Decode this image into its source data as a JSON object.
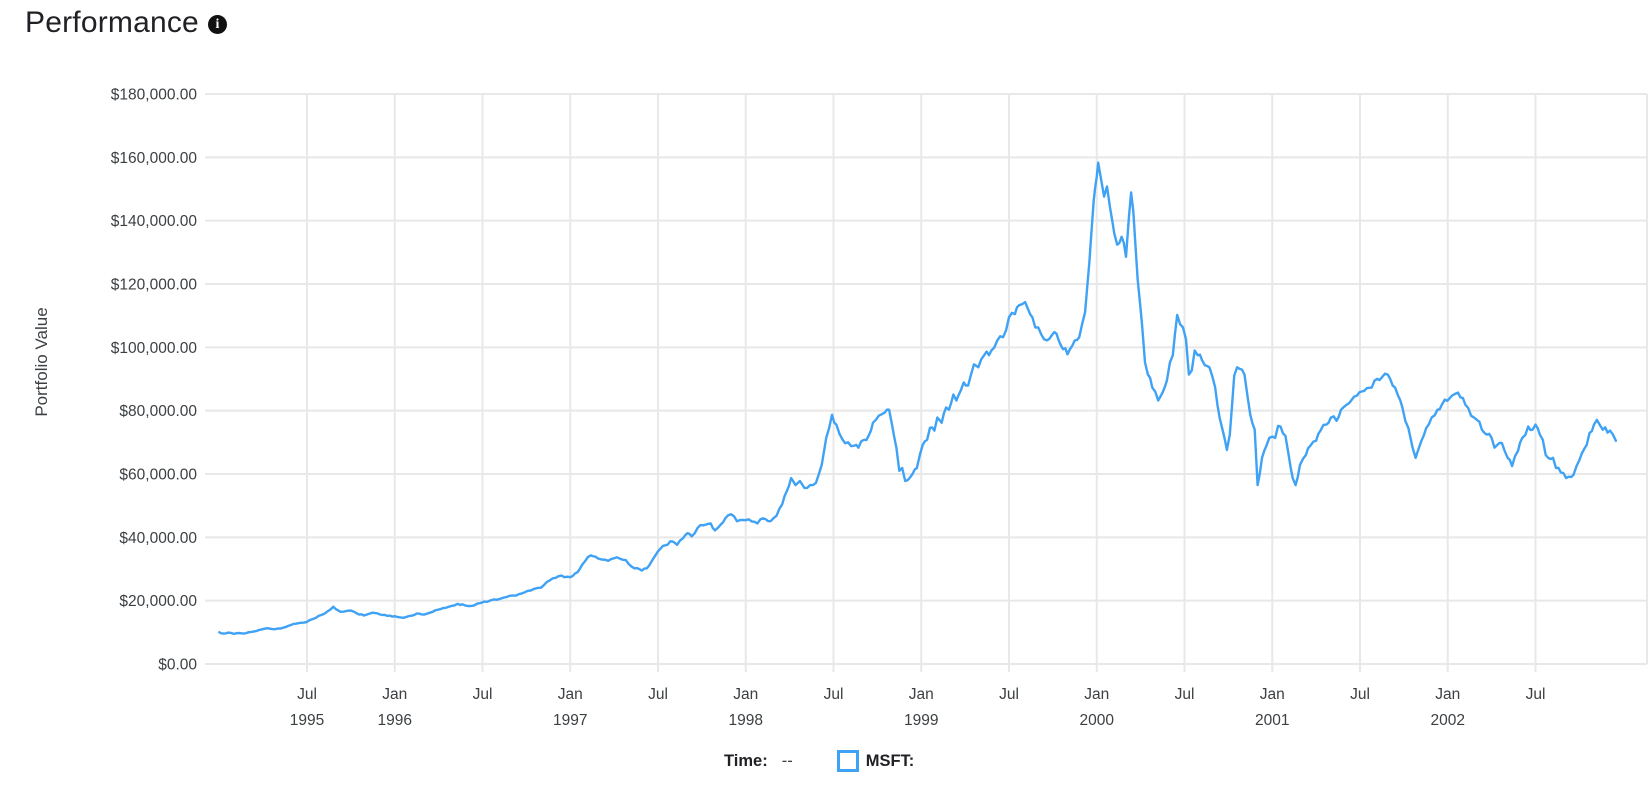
{
  "header": {
    "title": "Performance",
    "info_glyph": "i"
  },
  "legend": {
    "time_label": "Time:",
    "time_value": "--",
    "series_label": "MSFT:",
    "swatch_color": "#3FA2F5"
  },
  "chart_data": {
    "type": "line",
    "title": "Performance",
    "ylabel": "Portfolio Value",
    "xlabel": "",
    "grid": true,
    "legend_position": "bottom",
    "line_color": "#3FA2F5",
    "grid_color": "#E8E8E8",
    "tick_text_color": "#3c4043",
    "ylim": [
      0,
      180000
    ],
    "x_unit": "months_since_1995-01",
    "xlim_months": [
      0,
      96
    ],
    "y_ticks": [
      {
        "value": 180000,
        "label": "$180,000.00"
      },
      {
        "value": 160000,
        "label": "$160,000.00"
      },
      {
        "value": 140000,
        "label": "$140,000.00"
      },
      {
        "value": 120000,
        "label": "$120,000.00"
      },
      {
        "value": 100000,
        "label": "$100,000.00"
      },
      {
        "value": 80000,
        "label": "$80,000.00"
      },
      {
        "value": 60000,
        "label": "$60,000.00"
      },
      {
        "value": 40000,
        "label": "$40,000.00"
      },
      {
        "value": 20000,
        "label": "$20,000.00"
      },
      {
        "value": 0,
        "label": "$0.00"
      }
    ],
    "x_ticks": [
      {
        "m": 6,
        "label": "Jul",
        "year": "1995"
      },
      {
        "m": 12,
        "label": "Jan",
        "year": "1996"
      },
      {
        "m": 18,
        "label": "Jul",
        "year": ""
      },
      {
        "m": 24,
        "label": "Jan",
        "year": "1997"
      },
      {
        "m": 30,
        "label": "Jul",
        "year": ""
      },
      {
        "m": 36,
        "label": "Jan",
        "year": "1998"
      },
      {
        "m": 42,
        "label": "Jul",
        "year": ""
      },
      {
        "m": 48,
        "label": "Jan",
        "year": "1999"
      },
      {
        "m": 54,
        "label": "Jul",
        "year": ""
      },
      {
        "m": 60,
        "label": "Jan",
        "year": "2000"
      },
      {
        "m": 66,
        "label": "Jul",
        "year": ""
      },
      {
        "m": 72,
        "label": "Jan",
        "year": "2001"
      },
      {
        "m": 78,
        "label": "Jul",
        "year": ""
      },
      {
        "m": 84,
        "label": "Jan",
        "year": "2002"
      },
      {
        "m": 90,
        "label": "Jul",
        "year": ""
      }
    ],
    "series": [
      {
        "name": "MSFT",
        "points": [
          [
            0,
            10000
          ],
          [
            0.3,
            9600
          ],
          [
            0.6,
            9900
          ],
          [
            1,
            9500
          ],
          [
            1.3,
            9800
          ],
          [
            1.7,
            9600
          ],
          [
            2,
            10000
          ],
          [
            2.4,
            10300
          ],
          [
            2.7,
            10700
          ],
          [
            3.3,
            11300
          ],
          [
            3.8,
            11000
          ],
          [
            4.2,
            11200
          ],
          [
            4.7,
            12000
          ],
          [
            5.1,
            12700
          ],
          [
            5.6,
            13000
          ],
          [
            6,
            13300
          ],
          [
            6.4,
            14200
          ],
          [
            7,
            15500
          ],
          [
            7.4,
            16600
          ],
          [
            7.8,
            18100
          ],
          [
            8.1,
            17000
          ],
          [
            8.3,
            16500
          ],
          [
            9,
            16900
          ],
          [
            9.4,
            16000
          ],
          [
            9.9,
            15300
          ],
          [
            10.5,
            16200
          ],
          [
            11,
            15600
          ],
          [
            11.5,
            15200
          ],
          [
            12,
            15100
          ],
          [
            12.6,
            14600
          ],
          [
            13,
            15200
          ],
          [
            13.5,
            15900
          ],
          [
            14,
            15600
          ],
          [
            14.6,
            16500
          ],
          [
            15.1,
            17300
          ],
          [
            15.7,
            18100
          ],
          [
            16.3,
            19000
          ],
          [
            16.8,
            18500
          ],
          [
            17.2,
            18300
          ],
          [
            18.1,
            19700
          ],
          [
            19,
            20300
          ],
          [
            20.1,
            21600
          ],
          [
            20.7,
            22300
          ],
          [
            21.3,
            23200
          ],
          [
            22,
            24100
          ],
          [
            22.6,
            26400
          ],
          [
            23.4,
            27900
          ],
          [
            24,
            27400
          ],
          [
            24.5,
            29000
          ],
          [
            25,
            32400
          ],
          [
            25.4,
            34300
          ],
          [
            25.9,
            33300
          ],
          [
            26.6,
            32600
          ],
          [
            27.2,
            33700
          ],
          [
            27.8,
            32800
          ],
          [
            28.4,
            30200
          ],
          [
            28.9,
            29500
          ],
          [
            29.4,
            31100
          ],
          [
            30,
            35600
          ],
          [
            30.5,
            37500
          ],
          [
            31,
            38700
          ],
          [
            31.3,
            37600
          ],
          [
            31.7,
            39700
          ],
          [
            32,
            41300
          ],
          [
            32.3,
            40300
          ],
          [
            32.7,
            42900
          ],
          [
            33.1,
            43800
          ],
          [
            33.6,
            44400
          ],
          [
            33.9,
            42200
          ],
          [
            34.3,
            44100
          ],
          [
            34.6,
            46000
          ],
          [
            35,
            47300
          ],
          [
            35.4,
            45100
          ],
          [
            36,
            45400
          ],
          [
            36.8,
            44400
          ],
          [
            37.2,
            46000
          ],
          [
            37.7,
            45100
          ],
          [
            38.1,
            46800
          ],
          [
            38.5,
            50500
          ],
          [
            38.8,
            54500
          ],
          [
            39.1,
            58700
          ],
          [
            39.4,
            56500
          ],
          [
            39.7,
            57800
          ],
          [
            40,
            55600
          ],
          [
            40.4,
            56500
          ],
          [
            40.8,
            57200
          ],
          [
            41.2,
            63000
          ],
          [
            41.5,
            71400
          ],
          [
            41.9,
            78700
          ],
          [
            42.2,
            75600
          ],
          [
            42.6,
            71000
          ],
          [
            43,
            70000
          ],
          [
            43.4,
            68900
          ],
          [
            43.7,
            68300
          ],
          [
            44.1,
            70800
          ],
          [
            44.4,
            72100
          ],
          [
            44.7,
            76200
          ],
          [
            45.1,
            78400
          ],
          [
            45.5,
            79400
          ],
          [
            45.8,
            80300
          ],
          [
            46,
            75600
          ],
          [
            46.3,
            68300
          ],
          [
            46.5,
            61000
          ],
          [
            46.7,
            61900
          ],
          [
            46.9,
            57800
          ],
          [
            47.2,
            58700
          ],
          [
            47.4,
            60000
          ],
          [
            47.7,
            61900
          ],
          [
            47.9,
            66000
          ],
          [
            48.1,
            69200
          ],
          [
            48.4,
            70800
          ],
          [
            48.6,
            74600
          ],
          [
            48.9,
            73700
          ],
          [
            49.1,
            77800
          ],
          [
            49.4,
            76200
          ],
          [
            49.7,
            81000
          ],
          [
            49.9,
            80300
          ],
          [
            50.2,
            85100
          ],
          [
            50.4,
            83200
          ],
          [
            50.7,
            86300
          ],
          [
            50.9,
            88900
          ],
          [
            51.2,
            87900
          ],
          [
            51.4,
            91400
          ],
          [
            51.6,
            94600
          ],
          [
            51.9,
            93700
          ],
          [
            52.1,
            96200
          ],
          [
            52.3,
            97500
          ],
          [
            52.8,
            99000
          ],
          [
            53.2,
            102200
          ],
          [
            53.6,
            103200
          ],
          [
            53.8,
            105400
          ],
          [
            54,
            109500
          ],
          [
            54.4,
            110500
          ],
          [
            54.7,
            113300
          ],
          [
            55.1,
            114300
          ],
          [
            55.3,
            112100
          ],
          [
            55.6,
            109500
          ],
          [
            55.8,
            106300
          ],
          [
            56.2,
            104100
          ],
          [
            56.6,
            102200
          ],
          [
            57.1,
            104800
          ],
          [
            57.4,
            102200
          ],
          [
            57.7,
            99400
          ],
          [
            58,
            97800
          ],
          [
            58.5,
            102200
          ],
          [
            58.8,
            103200
          ],
          [
            59,
            107300
          ],
          [
            59.2,
            111100
          ],
          [
            59.35,
            119000
          ],
          [
            59.5,
            127000
          ],
          [
            59.6,
            134000
          ],
          [
            59.7,
            140600
          ],
          [
            59.8,
            146700
          ],
          [
            59.9,
            150800
          ],
          [
            60,
            154000
          ],
          [
            60.1,
            158300
          ],
          [
            60.3,
            153000
          ],
          [
            60.5,
            147600
          ],
          [
            60.7,
            150800
          ],
          [
            60.9,
            144400
          ],
          [
            61.2,
            135900
          ],
          [
            61.4,
            132400
          ],
          [
            61.7,
            134900
          ],
          [
            62,
            128600
          ],
          [
            62.2,
            141000
          ],
          [
            62.35,
            148900
          ],
          [
            62.5,
            143000
          ],
          [
            62.65,
            132000
          ],
          [
            62.8,
            121300
          ],
          [
            63.1,
            107000
          ],
          [
            63.3,
            95200
          ],
          [
            63.5,
            91400
          ],
          [
            63.8,
            87300
          ],
          [
            64.2,
            83200
          ],
          [
            64.5,
            85700
          ],
          [
            64.8,
            89500
          ],
          [
            65,
            95200
          ],
          [
            65.2,
            97500
          ],
          [
            65.5,
            110200
          ],
          [
            65.7,
            107300
          ],
          [
            65.9,
            106300
          ],
          [
            66.1,
            102500
          ],
          [
            66.3,
            91400
          ],
          [
            66.5,
            92700
          ],
          [
            66.7,
            99000
          ],
          [
            66.9,
            97500
          ],
          [
            67.2,
            95900
          ],
          [
            67.4,
            94300
          ],
          [
            67.7,
            93700
          ],
          [
            68.1,
            87300
          ],
          [
            68.4,
            77800
          ],
          [
            68.6,
            74000
          ],
          [
            68.9,
            67600
          ],
          [
            69.1,
            72400
          ],
          [
            69.4,
            91000
          ],
          [
            69.6,
            93700
          ],
          [
            70.1,
            91400
          ],
          [
            70.5,
            78700
          ],
          [
            70.8,
            74000
          ],
          [
            71,
            56500
          ],
          [
            71.3,
            65100
          ],
          [
            71.6,
            68900
          ],
          [
            71.8,
            71400
          ],
          [
            72.2,
            71400
          ],
          [
            72.4,
            75200
          ],
          [
            72.9,
            72100
          ],
          [
            73.1,
            66700
          ],
          [
            73.4,
            58700
          ],
          [
            73.6,
            56500
          ],
          [
            73.9,
            62900
          ],
          [
            74.3,
            66000
          ],
          [
            74.6,
            68900
          ],
          [
            75,
            70500
          ],
          [
            75.3,
            73700
          ],
          [
            75.7,
            75600
          ],
          [
            76,
            77800
          ],
          [
            76.4,
            76800
          ],
          [
            76.7,
            80300
          ],
          [
            77.1,
            81900
          ],
          [
            77.4,
            83200
          ],
          [
            77.8,
            84800
          ],
          [
            78.3,
            86300
          ],
          [
            78.8,
            87300
          ],
          [
            79,
            89500
          ],
          [
            79.5,
            90500
          ],
          [
            79.9,
            91400
          ],
          [
            80.4,
            87300
          ],
          [
            80.6,
            84800
          ],
          [
            80.9,
            81000
          ],
          [
            81.1,
            76800
          ],
          [
            81.3,
            74600
          ],
          [
            81.6,
            68300
          ],
          [
            81.8,
            65100
          ],
          [
            82.2,
            70500
          ],
          [
            82.7,
            75600
          ],
          [
            83.1,
            78500
          ],
          [
            83.3,
            80300
          ],
          [
            83.6,
            81900
          ],
          [
            83.8,
            83500
          ],
          [
            84.3,
            84800
          ],
          [
            84.7,
            85700
          ],
          [
            85.2,
            81900
          ],
          [
            85.6,
            78400
          ],
          [
            86,
            77100
          ],
          [
            86.5,
            73000
          ],
          [
            87,
            71400
          ],
          [
            87.2,
            68300
          ],
          [
            87.7,
            69800
          ],
          [
            88.1,
            65100
          ],
          [
            88.4,
            62500
          ],
          [
            88.8,
            67300
          ],
          [
            89.1,
            71400
          ],
          [
            89.5,
            75000
          ],
          [
            89.8,
            74000
          ],
          [
            90,
            75600
          ],
          [
            90.3,
            72400
          ],
          [
            90.5,
            70800
          ],
          [
            90.7,
            66000
          ],
          [
            91.2,
            65100
          ],
          [
            91.4,
            61900
          ],
          [
            91.9,
            60300
          ],
          [
            92.1,
            58700
          ],
          [
            92.6,
            59700
          ],
          [
            92.8,
            62500
          ],
          [
            93,
            64400
          ],
          [
            93.5,
            69200
          ],
          [
            93.7,
            73000
          ],
          [
            94,
            75600
          ],
          [
            94.2,
            77100
          ],
          [
            94.6,
            74000
          ],
          [
            95.1,
            73700
          ],
          [
            95.3,
            72400
          ],
          [
            95.5,
            70500
          ]
        ]
      }
    ]
  }
}
